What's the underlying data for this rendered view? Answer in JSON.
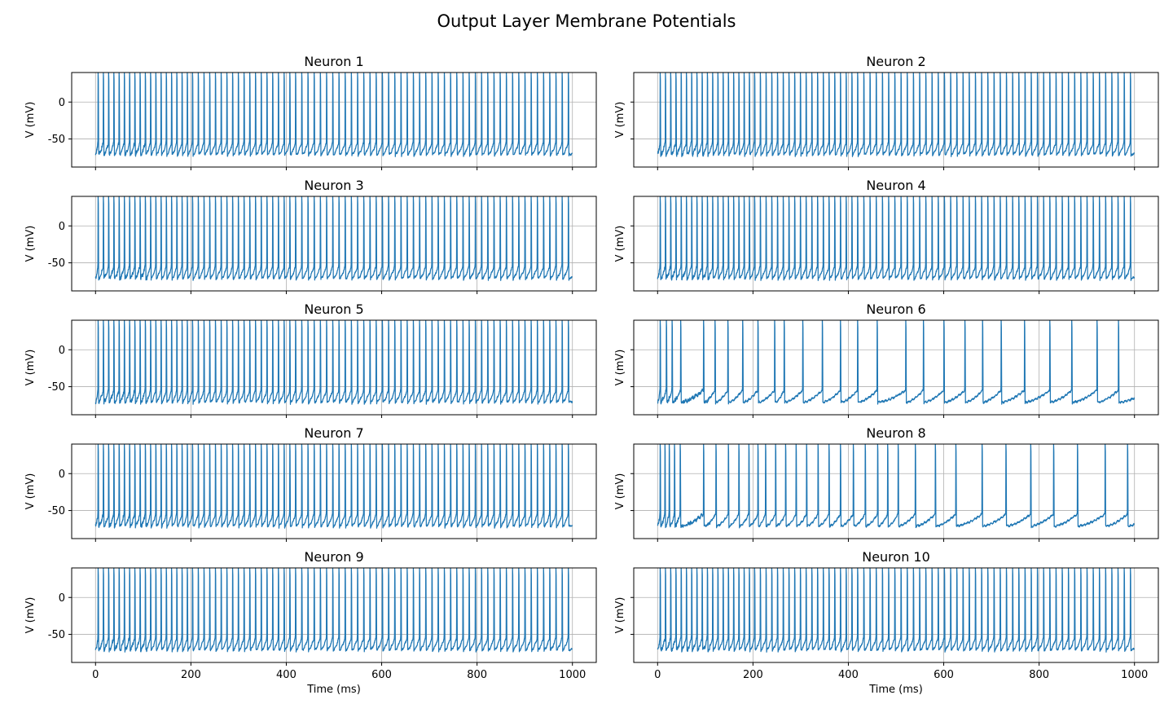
{
  "figure": {
    "title": "Output Layer Membrane Potentials",
    "line_color": "#1f77b4"
  },
  "chart_data": [
    {
      "type": "line",
      "title": "Neuron 1",
      "xlabel": "",
      "ylabel": "V (mV)",
      "xlim": [
        -50,
        1050
      ],
      "ylim": [
        -88,
        40
      ],
      "xticks": [
        0,
        200,
        400,
        600,
        800,
        1000
      ],
      "yticks": [
        -50,
        0
      ],
      "grid": true,
      "rest_mV": -65,
      "spike_peak_mV": 40,
      "duration_ms": 1000,
      "spike_times_ms": [
        5,
        16,
        27,
        38,
        49,
        60,
        71,
        82,
        93,
        104,
        115,
        126,
        137,
        148,
        159,
        170,
        181,
        192,
        203,
        215,
        227,
        239,
        251,
        263,
        275,
        287,
        299,
        311,
        323,
        335,
        347,
        359,
        371,
        383,
        395,
        407,
        419,
        432,
        445,
        458,
        471,
        484,
        497,
        510,
        523,
        536,
        549,
        562,
        575,
        588,
        601,
        614,
        627,
        640,
        653,
        666,
        679,
        692,
        705,
        718,
        731,
        744,
        757,
        770,
        783,
        796,
        809,
        822,
        835,
        848,
        861,
        874,
        887,
        900,
        913,
        926,
        939,
        952,
        965,
        978,
        991
      ]
    },
    {
      "type": "line",
      "title": "Neuron 2",
      "xlabel": "",
      "ylabel": "V (mV)",
      "xlim": [
        -50,
        1050
      ],
      "ylim": [
        -88,
        40
      ],
      "xticks": [
        0,
        200,
        400,
        600,
        800,
        1000
      ],
      "yticks": [
        -50,
        0
      ],
      "grid": true,
      "rest_mV": -65,
      "spike_peak_mV": 40,
      "duration_ms": 1000,
      "spike_times_ms": [
        5,
        16,
        27,
        38,
        49,
        60,
        71,
        82,
        93,
        104,
        115,
        126,
        137,
        148,
        159,
        170,
        181,
        192,
        203,
        215,
        227,
        239,
        251,
        263,
        275,
        287,
        299,
        311,
        323,
        335,
        347,
        359,
        371,
        383,
        395,
        407,
        419,
        432,
        445,
        458,
        471,
        484,
        497,
        510,
        523,
        536,
        549,
        562,
        575,
        588,
        601,
        614,
        627,
        640,
        653,
        666,
        679,
        692,
        705,
        718,
        731,
        744,
        757,
        770,
        783,
        796,
        809,
        822,
        835,
        848,
        861,
        874,
        887,
        900,
        913,
        926,
        939,
        952,
        965,
        978,
        991
      ]
    },
    {
      "type": "line",
      "title": "Neuron 3",
      "xlabel": "",
      "ylabel": "V (mV)",
      "xlim": [
        -50,
        1050
      ],
      "ylim": [
        -88,
        40
      ],
      "xticks": [
        0,
        200,
        400,
        600,
        800,
        1000
      ],
      "yticks": [
        -50,
        0
      ],
      "grid": true,
      "rest_mV": -65,
      "spike_peak_mV": 40,
      "duration_ms": 1000,
      "spike_times_ms": [
        5,
        16,
        27,
        38,
        49,
        60,
        71,
        82,
        93,
        104,
        115,
        126,
        137,
        148,
        159,
        170,
        181,
        192,
        203,
        215,
        227,
        239,
        251,
        263,
        275,
        287,
        299,
        311,
        323,
        335,
        347,
        359,
        371,
        383,
        395,
        407,
        419,
        432,
        445,
        458,
        471,
        484,
        497,
        510,
        523,
        536,
        549,
        562,
        575,
        588,
        601,
        614,
        627,
        640,
        653,
        666,
        679,
        692,
        705,
        718,
        731,
        744,
        757,
        770,
        783,
        796,
        809,
        822,
        835,
        848,
        861,
        874,
        887,
        900,
        913,
        926,
        939,
        952,
        965,
        978,
        991
      ]
    },
    {
      "type": "line",
      "title": "Neuron 4",
      "xlabel": "",
      "ylabel": "V (mV)",
      "xlim": [
        -50,
        1050
      ],
      "ylim": [
        -88,
        40
      ],
      "xticks": [
        0,
        200,
        400,
        600,
        800,
        1000
      ],
      "yticks": [
        -50,
        0
      ],
      "grid": true,
      "rest_mV": -65,
      "spike_peak_mV": 40,
      "duration_ms": 1000,
      "spike_times_ms": [
        5,
        16,
        27,
        38,
        49,
        60,
        71,
        82,
        93,
        104,
        115,
        126,
        137,
        148,
        159,
        170,
        181,
        192,
        203,
        215,
        227,
        239,
        251,
        263,
        275,
        287,
        299,
        311,
        323,
        335,
        347,
        359,
        371,
        383,
        395,
        407,
        419,
        432,
        445,
        458,
        471,
        484,
        497,
        510,
        523,
        536,
        549,
        562,
        575,
        588,
        601,
        614,
        627,
        640,
        653,
        666,
        679,
        692,
        705,
        718,
        731,
        744,
        757,
        770,
        783,
        796,
        809,
        822,
        835,
        848,
        861,
        874,
        887,
        900,
        913,
        926,
        939,
        952,
        965,
        978,
        991
      ]
    },
    {
      "type": "line",
      "title": "Neuron 5",
      "xlabel": "",
      "ylabel": "V (mV)",
      "xlim": [
        -50,
        1050
      ],
      "ylim": [
        -88,
        40
      ],
      "xticks": [
        0,
        200,
        400,
        600,
        800,
        1000
      ],
      "yticks": [
        -50,
        0
      ],
      "grid": true,
      "rest_mV": -65,
      "spike_peak_mV": 40,
      "duration_ms": 1000,
      "spike_times_ms": [
        5,
        16,
        27,
        38,
        49,
        60,
        71,
        82,
        93,
        104,
        115,
        126,
        137,
        148,
        159,
        170,
        181,
        192,
        203,
        215,
        227,
        239,
        251,
        263,
        275,
        287,
        299,
        311,
        323,
        335,
        347,
        359,
        371,
        383,
        395,
        407,
        419,
        432,
        445,
        458,
        471,
        484,
        497,
        510,
        523,
        536,
        549,
        562,
        575,
        588,
        601,
        614,
        627,
        640,
        653,
        666,
        679,
        692,
        705,
        718,
        731,
        744,
        757,
        770,
        783,
        796,
        809,
        822,
        835,
        848,
        861,
        874,
        887,
        900,
        913,
        926,
        939,
        952,
        965,
        978,
        991
      ]
    },
    {
      "type": "line",
      "title": "Neuron 6",
      "xlabel": "",
      "ylabel": "V (mV)",
      "xlim": [
        -50,
        1050
      ],
      "ylim": [
        -88,
        40
      ],
      "xticks": [
        0,
        200,
        400,
        600,
        800,
        1000
      ],
      "yticks": [
        -50,
        0
      ],
      "grid": true,
      "rest_mV": -65,
      "spike_peak_mV": 40,
      "duration_ms": 1000,
      "spike_times_ms": [
        5,
        18,
        30,
        48,
        96,
        120,
        147,
        178,
        210,
        245,
        265,
        304,
        345,
        383,
        419,
        460,
        520,
        557,
        600,
        644,
        681,
        720,
        769,
        822,
        868,
        921,
        966
      ]
    },
    {
      "type": "line",
      "title": "Neuron 7",
      "xlabel": "",
      "ylabel": "V (mV)",
      "xlim": [
        -50,
        1050
      ],
      "ylim": [
        -88,
        40
      ],
      "xticks": [
        0,
        200,
        400,
        600,
        800,
        1000
      ],
      "yticks": [
        -50,
        0
      ],
      "grid": true,
      "rest_mV": -65,
      "spike_peak_mV": 40,
      "duration_ms": 1000,
      "spike_times_ms": [
        5,
        16,
        27,
        38,
        49,
        60,
        71,
        82,
        93,
        104,
        115,
        126,
        137,
        148,
        159,
        170,
        181,
        192,
        203,
        215,
        227,
        239,
        251,
        263,
        275,
        287,
        299,
        311,
        323,
        335,
        347,
        359,
        371,
        383,
        395,
        407,
        419,
        432,
        445,
        458,
        471,
        484,
        497,
        510,
        523,
        536,
        549,
        562,
        575,
        588,
        601,
        614,
        627,
        640,
        653,
        666,
        679,
        692,
        705,
        718,
        731,
        744,
        757,
        770,
        783,
        796,
        809,
        822,
        835,
        848,
        861,
        874,
        887,
        900,
        913,
        926,
        939,
        952,
        965,
        978,
        991
      ]
    },
    {
      "type": "line",
      "title": "Neuron 8",
      "xlabel": "",
      "ylabel": "V (mV)",
      "xlim": [
        -50,
        1050
      ],
      "ylim": [
        -88,
        40
      ],
      "xticks": [
        0,
        200,
        400,
        600,
        800,
        1000
      ],
      "yticks": [
        -50,
        0
      ],
      "grid": true,
      "rest_mV": -65,
      "spike_peak_mV": 40,
      "duration_ms": 1000,
      "spike_times_ms": [
        5,
        15,
        24,
        35,
        47,
        96,
        122,
        148,
        170,
        191,
        210,
        226,
        247,
        268,
        290,
        312,
        336,
        359,
        383,
        410,
        435,
        461,
        482,
        504,
        540,
        582,
        625,
        680,
        730,
        782,
        830,
        880,
        938,
        985
      ]
    },
    {
      "type": "line",
      "title": "Neuron 9",
      "xlabel": "Time (ms)",
      "ylabel": "V (mV)",
      "xlim": [
        -50,
        1050
      ],
      "ylim": [
        -88,
        40
      ],
      "xticks": [
        0,
        200,
        400,
        600,
        800,
        1000
      ],
      "yticks": [
        -50,
        0
      ],
      "grid": true,
      "rest_mV": -65,
      "spike_peak_mV": 40,
      "duration_ms": 1000,
      "spike_times_ms": [
        5,
        16,
        27,
        38,
        49,
        60,
        71,
        82,
        93,
        104,
        115,
        126,
        137,
        148,
        159,
        170,
        181,
        192,
        203,
        215,
        227,
        239,
        251,
        263,
        275,
        287,
        299,
        311,
        323,
        335,
        347,
        359,
        371,
        383,
        395,
        407,
        419,
        432,
        445,
        458,
        471,
        484,
        497,
        510,
        523,
        536,
        549,
        562,
        575,
        588,
        601,
        614,
        627,
        640,
        653,
        666,
        679,
        692,
        705,
        718,
        731,
        744,
        757,
        770,
        783,
        796,
        809,
        822,
        835,
        848,
        861,
        874,
        887,
        900,
        913,
        926,
        939,
        952,
        965,
        978,
        991
      ]
    },
    {
      "type": "line",
      "title": "Neuron 10",
      "xlabel": "Time (ms)",
      "ylabel": "V (mV)",
      "xlim": [
        -50,
        1050
      ],
      "ylim": [
        -88,
        40
      ],
      "xticks": [
        0,
        200,
        400,
        600,
        800,
        1000
      ],
      "yticks": [
        -50,
        0
      ],
      "grid": true,
      "rest_mV": -65,
      "spike_peak_mV": 40,
      "duration_ms": 1000,
      "spike_times_ms": [
        5,
        16,
        27,
        38,
        49,
        60,
        71,
        82,
        93,
        104,
        115,
        126,
        137,
        148,
        159,
        170,
        181,
        192,
        203,
        215,
        227,
        239,
        251,
        263,
        275,
        287,
        299,
        311,
        323,
        335,
        347,
        359,
        371,
        383,
        395,
        407,
        419,
        432,
        445,
        458,
        471,
        484,
        497,
        510,
        523,
        536,
        549,
        562,
        575,
        588,
        601,
        614,
        627,
        640,
        653,
        666,
        679,
        692,
        705,
        718,
        731,
        744,
        757,
        770,
        783,
        796,
        809,
        822,
        835,
        848,
        861,
        874,
        887,
        900,
        913,
        926,
        939,
        952,
        965,
        978,
        991
      ]
    }
  ]
}
